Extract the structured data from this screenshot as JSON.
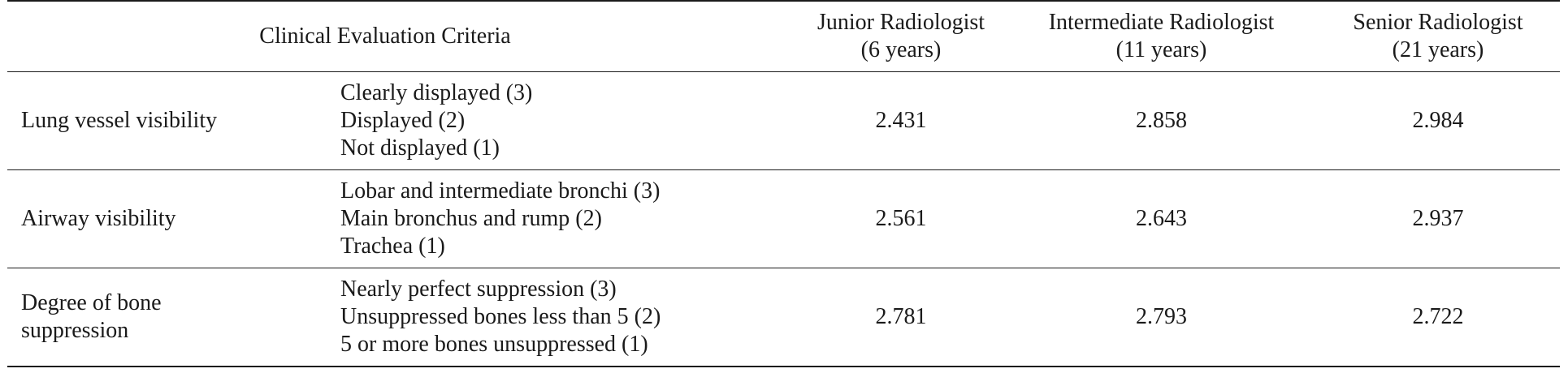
{
  "header": {
    "criteria": "Clinical Evaluation Criteria",
    "readers": [
      {
        "title": "Junior Radiologist",
        "experience": "(6 years)"
      },
      {
        "title": "Intermediate Radiologist",
        "experience": "(11 years)"
      },
      {
        "title": "Senior Radiologist",
        "experience": "(21 years)"
      }
    ]
  },
  "rows": [
    {
      "criterion": "Lung vessel visibility",
      "options": [
        "Clearly displayed (3)",
        "Displayed (2)",
        "Not displayed (1)"
      ],
      "scores": [
        "2.431",
        "2.858",
        "2.984"
      ]
    },
    {
      "criterion": "Airway visibility",
      "options": [
        "Lobar and intermediate bronchi (3)",
        "Main bronchus and rump (2)",
        "Trachea (1)"
      ],
      "scores": [
        "2.561",
        "2.643",
        "2.937"
      ]
    },
    {
      "criterion": "Degree of bone suppression",
      "options": [
        "Nearly perfect suppression (3)",
        "Unsuppressed bones less than 5 (2)",
        "5 or more bones unsuppressed (1)"
      ],
      "scores": [
        "2.781",
        "2.793",
        "2.722"
      ]
    }
  ]
}
